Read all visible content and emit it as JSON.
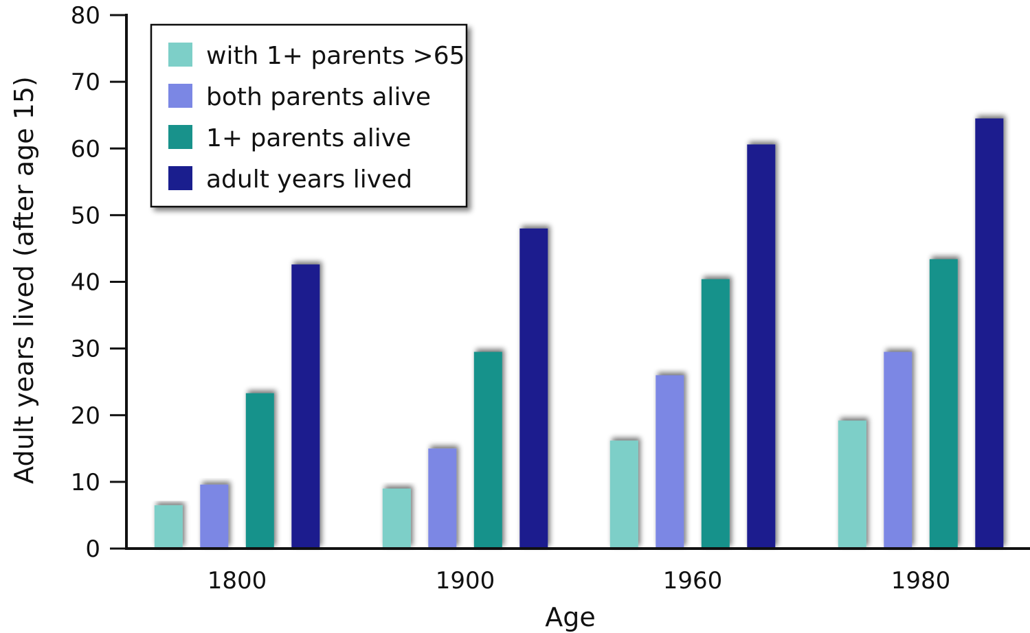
{
  "chart_data": {
    "type": "bar",
    "title": "",
    "xlabel": "Age",
    "ylabel": "Adult years lived (after age 15)",
    "categories": [
      "1800",
      "1900",
      "1960",
      "1980"
    ],
    "ylim": [
      0,
      80
    ],
    "yticks": [
      0,
      10,
      20,
      30,
      40,
      50,
      60,
      70,
      80
    ],
    "grid": false,
    "legend_position": "top-left",
    "series": [
      {
        "name": "with 1+ parents >65",
        "color": "#7dcfc8",
        "values": [
          6.5,
          9,
          16.2,
          19.2
        ]
      },
      {
        "name": "both parents alive",
        "color": "#7b87e4",
        "values": [
          9.6,
          15,
          26,
          29.5
        ]
      },
      {
        "name": "1+ parents alive",
        "color": "#18928b",
        "values": [
          23.3,
          29.5,
          40.4,
          43.4
        ]
      },
      {
        "name": "adult years lived",
        "color": "#1a1e8e",
        "values": [
          42.6,
          48,
          60.6,
          64.5
        ]
      }
    ]
  }
}
